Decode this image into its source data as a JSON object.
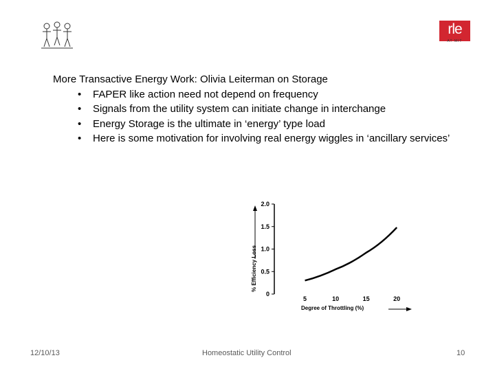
{
  "slide": {
    "title": "More Transactive Energy Work: Olivia Leiterman on Storage",
    "bullets": [
      "FAPER like action need not depend on frequency",
      "Signals from the utility system can initiate change in interchange",
      "Energy Storage is the ultimate in ‘energy’ type load",
      "Here is some motivation for involving real energy wiggles in ‘ancillary services’"
    ],
    "bullet_char": "•"
  },
  "logos": {
    "left_icon": "group-figures-logo-icon",
    "right_text": "rle",
    "right_subtext": "AT MIT",
    "right_color": "#d22630"
  },
  "chart_data": {
    "type": "line",
    "x": [
      5,
      10,
      15,
      20
    ],
    "series": [
      {
        "values": [
          0.3,
          0.55,
          0.92,
          1.48
        ]
      }
    ],
    "xlabel": "Degree of Throttling (%)",
    "ylabel": "% Efficiency Loss",
    "xticks": [
      "5",
      "10",
      "15",
      "20"
    ],
    "yticks": [
      "0",
      "0.5",
      "1.0",
      "1.5",
      "2.0"
    ],
    "xlim": [
      0,
      22
    ],
    "ylim": [
      0,
      2.0
    ],
    "grid": false
  },
  "footer": {
    "date": "12/10/13",
    "title": "Homeostatic Utility Control",
    "page": "10"
  }
}
